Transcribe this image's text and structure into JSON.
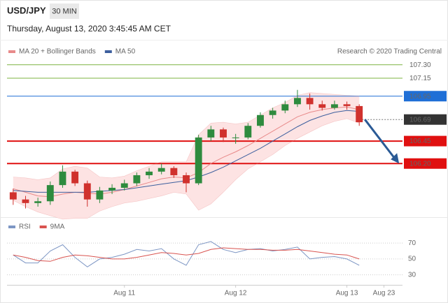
{
  "chart_data": {
    "type": "candlestick",
    "title": "USD/JPY",
    "interval": "30 MIN",
    "subtitle": "Thursday, August 13, 2020 3:45:45 AM CET",
    "credit": "Research © 2020 Trading Central",
    "categories": [
      null,
      null,
      null,
      null,
      null,
      null,
      null,
      null,
      null,
      "Aug 11",
      null,
      null,
      null,
      null,
      null,
      null,
      null,
      null,
      "Aug 12",
      null,
      null,
      null,
      null,
      null,
      null,
      null,
      null,
      "Aug 13",
      null,
      null,
      "Aug 23",
      null
    ],
    "ylim": [
      105.65,
      107.36
    ],
    "up_color": "#2e8b3e",
    "down_color": "#d0312d",
    "band_fill": "#fde3e3",
    "open": [
      105.88,
      105.8,
      105.76,
      105.78,
      105.96,
      106.11,
      105.98,
      105.8,
      105.9,
      105.93,
      105.98,
      106.07,
      106.11,
      106.15,
      106.07,
      105.98,
      106.49,
      106.58,
      106.49,
      106.49,
      106.62,
      106.74,
      106.79,
      106.86,
      106.93,
      106.86,
      106.82,
      106.86,
      106.84,
      null,
      null,
      null
    ],
    "high": [
      105.92,
      105.84,
      105.82,
      106.0,
      106.18,
      106.13,
      106.01,
      105.94,
      105.97,
      106.02,
      106.1,
      106.15,
      106.2,
      106.17,
      106.1,
      106.52,
      106.62,
      106.6,
      106.53,
      106.65,
      106.77,
      106.82,
      106.9,
      107.02,
      106.98,
      106.9,
      106.9,
      106.89,
      106.86,
      null,
      null,
      null
    ],
    "low": [
      105.74,
      105.7,
      105.72,
      105.74,
      105.93,
      105.95,
      105.72,
      105.76,
      105.86,
      105.9,
      105.95,
      106.03,
      106.08,
      106.04,
      105.88,
      105.96,
      106.45,
      106.44,
      106.42,
      106.47,
      106.6,
      106.7,
      106.76,
      106.83,
      106.8,
      106.79,
      106.8,
      106.8,
      106.62,
      null,
      null,
      null
    ],
    "close": [
      105.8,
      105.76,
      105.78,
      105.96,
      106.11,
      105.98,
      105.8,
      105.9,
      105.93,
      105.98,
      106.07,
      106.11,
      106.15,
      106.07,
      105.98,
      106.49,
      106.58,
      106.49,
      106.49,
      106.62,
      106.74,
      106.79,
      106.86,
      106.93,
      106.86,
      106.82,
      106.86,
      106.84,
      106.66,
      null,
      null,
      null
    ],
    "series": [
      {
        "name": "MA 20 + Bollinger Bands",
        "color": "#e88a8a",
        "values": [
          105.92,
          105.88,
          105.84,
          105.83,
          105.86,
          105.88,
          105.87,
          105.86,
          105.88,
          105.91,
          105.95,
          105.99,
          106.03,
          106.05,
          106.04,
          106.1,
          106.2,
          106.27,
          106.33,
          106.4,
          106.48,
          106.56,
          106.64,
          106.72,
          106.77,
          106.8,
          106.82,
          106.83,
          106.8,
          null,
          null,
          null
        ],
        "upper": [
          106.05,
          106.04,
          106.02,
          106.04,
          106.14,
          106.17,
          106.15,
          106.05,
          106.04,
          106.06,
          106.12,
          106.17,
          106.22,
          106.22,
          106.22,
          106.52,
          106.65,
          106.66,
          106.64,
          106.66,
          106.74,
          106.82,
          106.88,
          106.96,
          106.99,
          106.98,
          106.97,
          106.96,
          106.95,
          null,
          null,
          null
        ],
        "lower": [
          105.79,
          105.72,
          105.66,
          105.62,
          105.58,
          105.59,
          105.59,
          105.67,
          105.72,
          105.76,
          105.78,
          105.81,
          105.84,
          105.88,
          105.86,
          105.68,
          105.75,
          105.88,
          106.02,
          106.14,
          106.22,
          106.3,
          106.4,
          106.48,
          106.55,
          106.62,
          106.67,
          106.7,
          106.65,
          null,
          null,
          null
        ]
      },
      {
        "name": "MA 50",
        "color": "#3d5f9e",
        "values": [
          105.9,
          105.89,
          105.88,
          105.88,
          105.88,
          105.88,
          105.88,
          105.89,
          105.9,
          105.91,
          105.93,
          105.95,
          105.97,
          105.99,
          106.01,
          106.05,
          106.1,
          106.16,
          106.23,
          106.3,
          106.37,
          106.45,
          106.53,
          106.61,
          106.68,
          106.73,
          106.77,
          106.79,
          106.78,
          null,
          null,
          null
        ]
      }
    ],
    "levels": [
      {
        "value": 107.3,
        "label": "107.30",
        "color": "#7cb342",
        "tag": false
      },
      {
        "value": 107.15,
        "label": "107.15",
        "color": "#7cb342",
        "tag": false
      },
      {
        "value": 106.95,
        "label": "106.95",
        "color": "#1f6fd6",
        "tag": true
      },
      {
        "value": 106.69,
        "label": "106.69",
        "color": "#333333",
        "tag": true,
        "line": "dotted"
      },
      {
        "value": 106.45,
        "label": "106.45",
        "color": "#e01010",
        "tag": true,
        "bold": true
      },
      {
        "value": 106.2,
        "label": "106.20",
        "color": "#e01010",
        "tag": true,
        "bold": true,
        "arrow": true
      }
    ],
    "arrow_color": "#2a5a95",
    "indicator": {
      "type": "line",
      "ylim": [
        20,
        86
      ],
      "yticks": [
        70,
        50,
        30
      ],
      "series": [
        {
          "name": "RSI",
          "color": "#7d96c4",
          "values": [
            55,
            45,
            45,
            60,
            68,
            52,
            40,
            50,
            52,
            56,
            62,
            60,
            63,
            50,
            42,
            68,
            72,
            62,
            58,
            62,
            63,
            60,
            62,
            65,
            50,
            52,
            53,
            50,
            42,
            null,
            null,
            null
          ]
        },
        {
          "name": "9MA",
          "color": "#d9534f",
          "values": [
            55,
            52,
            48,
            47,
            52,
            55,
            54,
            52,
            50,
            50,
            52,
            55,
            58,
            57,
            55,
            57,
            62,
            64,
            63,
            62,
            62,
            61,
            61,
            62,
            60,
            58,
            56,
            55,
            50,
            null,
            null,
            null
          ]
        }
      ]
    }
  }
}
